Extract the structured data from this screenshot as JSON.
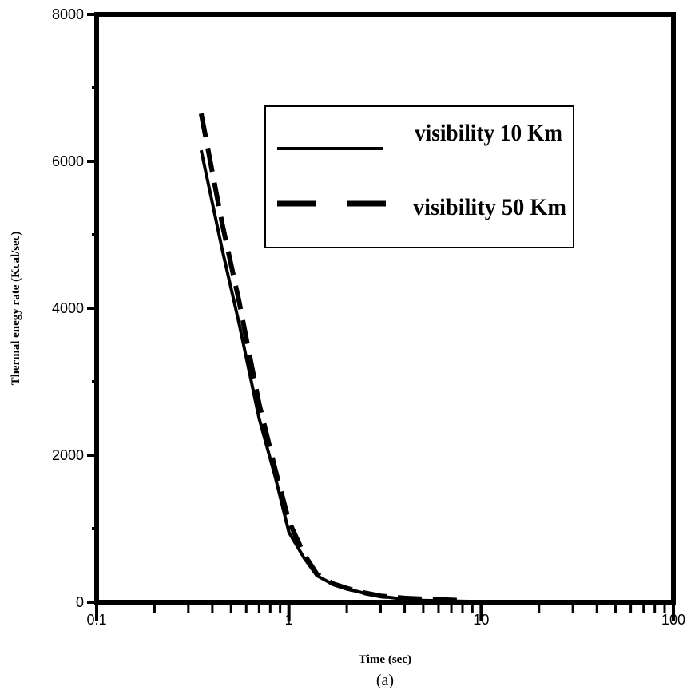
{
  "chart_data": {
    "type": "line",
    "xscale": "log",
    "xlim": [
      0.1,
      100
    ],
    "ylim": [
      0,
      8000
    ],
    "xticks": [
      0.1,
      1,
      10,
      100
    ],
    "xtick_labels": [
      "0.1",
      "1",
      "10",
      "100"
    ],
    "yticks": [
      0,
      2000,
      4000,
      6000,
      8000
    ],
    "ytick_labels": [
      "0",
      "2000",
      "4000",
      "6000",
      "8000"
    ],
    "xlabel": "Time (sec)",
    "ylabel": "Thermal enegy rate (Kcal/sec)",
    "caption": "(a)",
    "grid": false,
    "legend_position": "top-right",
    "series": [
      {
        "name": "visibility 10 Km",
        "style": "solid",
        "color": "#000000",
        "x": [
          0.35,
          0.45,
          0.55,
          0.7,
          0.85,
          1.0,
          1.2,
          1.4,
          1.7,
          2.0,
          2.5,
          3.0,
          4.0,
          5.0,
          7.0,
          10.0,
          15.0,
          20.0
        ],
        "y": [
          6150,
          4800,
          3800,
          2500,
          1700,
          950,
          600,
          360,
          240,
          180,
          120,
          80,
          40,
          25,
          15,
          8,
          4,
          2
        ]
      },
      {
        "name": "visibility 50 Km",
        "style": "dashed",
        "color": "#000000",
        "x": [
          0.35,
          0.45,
          0.55,
          0.7,
          0.85,
          1.0,
          1.2,
          1.4,
          1.7,
          2.0,
          2.5,
          3.0,
          4.0,
          5.0,
          7.0,
          8.0
        ],
        "y": [
          6650,
          5150,
          4100,
          2700,
          1800,
          1100,
          650,
          380,
          250,
          190,
          125,
          85,
          55,
          45,
          30,
          25
        ]
      }
    ]
  }
}
